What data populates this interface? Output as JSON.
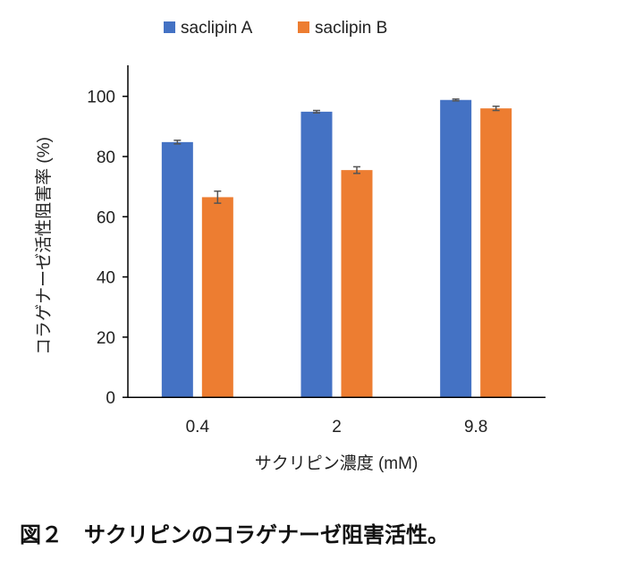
{
  "chart_data": {
    "type": "bar",
    "categories": [
      "0.4",
      "2",
      "9.8"
    ],
    "series": [
      {
        "name": "saclipin A",
        "color": "#4472C4",
        "values": [
          84.8,
          94.9,
          98.8
        ],
        "errors": [
          0.6,
          0.4,
          0.3
        ]
      },
      {
        "name": "saclipin B",
        "color": "#ED7D31",
        "values": [
          66.5,
          75.5,
          96.0
        ],
        "errors": [
          2.0,
          1.1,
          0.7
        ]
      }
    ],
    "xlabel": "サクリピン濃度 (mM)",
    "ylabel": "コラゲナーゼ活性阻害率 (%)",
    "ylim": [
      0,
      100
    ],
    "yticks": [
      0,
      20,
      40,
      60,
      80,
      100
    ],
    "grid": false,
    "legend": "top"
  },
  "caption": "図２　サクリピンのコラゲナーゼ阻害活性。"
}
